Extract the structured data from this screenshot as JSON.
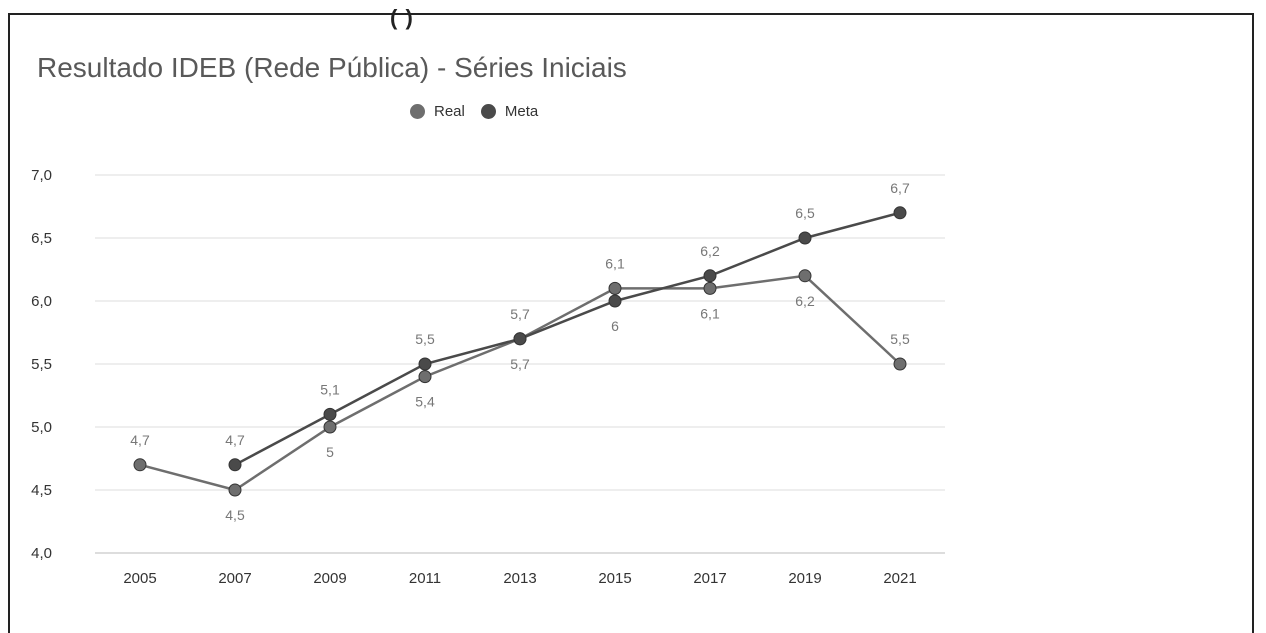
{
  "chart_data": {
    "type": "line",
    "title": "Resultado IDEB (Rede Pública) - Séries Iniciais",
    "x": [
      "2005",
      "2007",
      "2009",
      "2011",
      "2013",
      "2015",
      "2017",
      "2019",
      "2021"
    ],
    "ylim": [
      4.0,
      7.0
    ],
    "yticks": [
      "4,0",
      "4,5",
      "5,0",
      "5,5",
      "6,0",
      "6,5",
      "7,0"
    ],
    "grid": true,
    "legend_position": "top",
    "series": [
      {
        "name": "Real",
        "color": "#6e6e6e",
        "values": [
          4.7,
          4.5,
          5.0,
          5.4,
          5.7,
          6.1,
          6.1,
          6.2,
          5.5
        ],
        "labels": [
          "4,7",
          "4,5",
          "5",
          "5,4",
          "5,7",
          "6,1",
          "6,1",
          "6,2",
          "5,5"
        ],
        "label_pos": [
          "above",
          "below",
          "below",
          "below",
          "below",
          "above",
          "below",
          "below",
          "above"
        ]
      },
      {
        "name": "Meta",
        "color": "#4a4a4a",
        "values": [
          null,
          4.7,
          5.1,
          5.5,
          5.7,
          6.0,
          6.2,
          6.5,
          6.7
        ],
        "labels": [
          null,
          "4,7",
          "5,1",
          "5,5",
          "5,7",
          "6",
          "6,2",
          "6,5",
          "6,7"
        ],
        "label_pos": [
          null,
          "above",
          "above",
          "above",
          "above",
          "below",
          "above",
          "above",
          "above"
        ]
      }
    ]
  },
  "header": {
    "cut_text": "(   )"
  }
}
